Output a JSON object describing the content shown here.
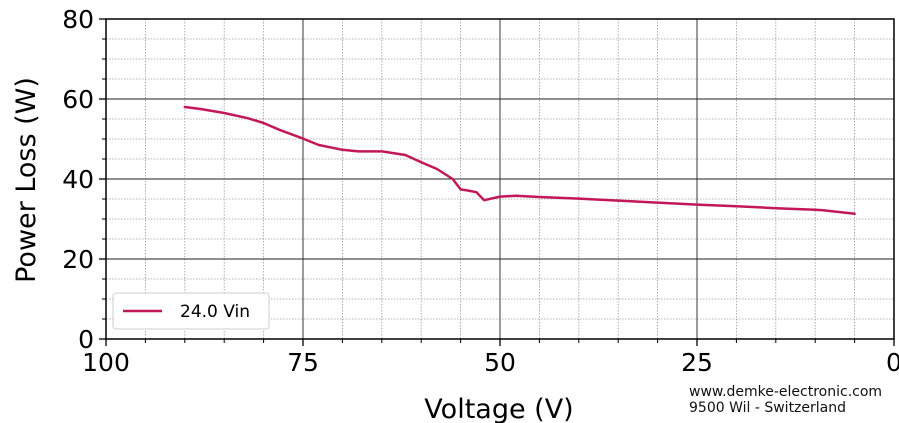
{
  "chart_data": {
    "type": "line",
    "xlabel": "Voltage (V)",
    "ylabel": "Power Loss (W)",
    "xlim": [
      100,
      0
    ],
    "ylim": [
      0,
      80
    ],
    "x_ticks": [
      100,
      75,
      50,
      25,
      0
    ],
    "x_tick_labels": [
      "100",
      "75",
      "50",
      "25",
      "0"
    ],
    "y_ticks": [
      0,
      20,
      40,
      60,
      80
    ],
    "y_tick_labels": [
      "0",
      "20",
      "40",
      "60",
      "80"
    ],
    "grid": "major and minor",
    "legend_position": "lower-left",
    "series": [
      {
        "name": "24.0 Vin",
        "color": "#c2185b",
        "x": [
          90,
          88,
          85,
          82,
          80,
          78,
          75,
          73,
          70,
          68,
          65,
          62,
          60,
          58,
          56,
          55,
          54,
          53,
          52,
          50,
          48,
          45,
          40,
          35,
          30,
          25,
          20,
          15,
          10,
          9,
          5
        ],
        "y": [
          58,
          57.5,
          56.5,
          55.2,
          54,
          52.3,
          50.1,
          48.5,
          47.3,
          46.9,
          46.9,
          46.0,
          44.2,
          42.5,
          40.0,
          37.4,
          37.1,
          36.7,
          34.7,
          35.6,
          35.8,
          35.5,
          35.1,
          34.6,
          34.1,
          33.6,
          33.2,
          32.7,
          32.3,
          32.2,
          31.3
        ]
      }
    ]
  },
  "watermark": {
    "line1": "www.demke-electronic.com",
    "line2": "9500 Wil - Switzerland"
  }
}
